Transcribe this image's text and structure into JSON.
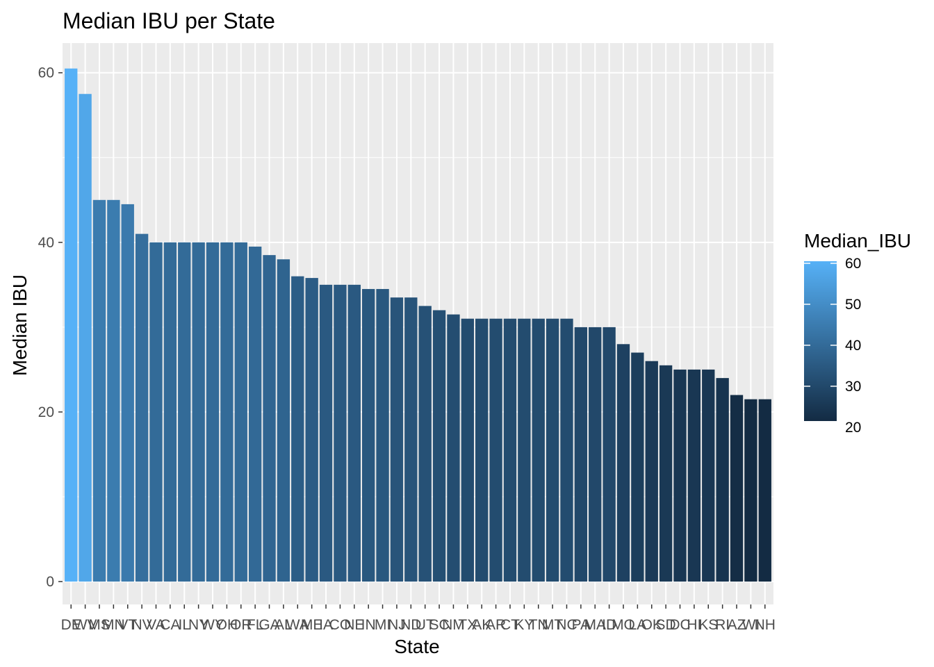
{
  "chart_data": {
    "type": "bar",
    "title": "Median IBU per State",
    "xlabel": "State",
    "ylabel": "Median IBU",
    "ylim": [
      -2.7,
      63.5
    ],
    "yticks": [
      0,
      20,
      40,
      60
    ],
    "grid": true,
    "legend_position": "right",
    "legend": {
      "title": "Median_IBU",
      "ticks": [
        20,
        30,
        40,
        50,
        60
      ],
      "low_color": "#132B43",
      "high_color": "#56B1F7"
    },
    "categories": [
      "DE",
      "WV",
      "MS",
      "MN",
      "VT",
      "NV",
      "VA",
      "CA",
      "IL",
      "NY",
      "WY",
      "OH",
      "OR",
      "FL",
      "GA",
      "AL",
      "WA",
      "ME",
      "IA",
      "CO",
      "NE",
      "IN",
      "MI",
      "NJ",
      "ND",
      "UT",
      "SC",
      "NM",
      "TX",
      "AK",
      "AR",
      "CT",
      "KY",
      "TN",
      "MT",
      "NC",
      "PA",
      "MA",
      "ID",
      "MO",
      "LA",
      "OK",
      "SD",
      "DC",
      "HI",
      "KS",
      "RI",
      "AZ",
      "WI",
      "NH"
    ],
    "values": [
      60.5,
      57.5,
      45,
      45,
      44.5,
      41,
      40,
      40,
      40,
      40,
      40,
      40,
      40,
      39.5,
      38.5,
      38,
      36,
      35.8,
      35,
      35,
      35,
      34.5,
      34.5,
      33.5,
      33.5,
      32.5,
      32,
      31.5,
      31,
      31,
      31,
      31,
      31,
      31,
      31,
      31,
      30,
      30,
      30,
      28,
      27,
      26,
      25.5,
      25,
      25,
      25,
      24,
      22,
      21.5,
      21.5
    ]
  }
}
